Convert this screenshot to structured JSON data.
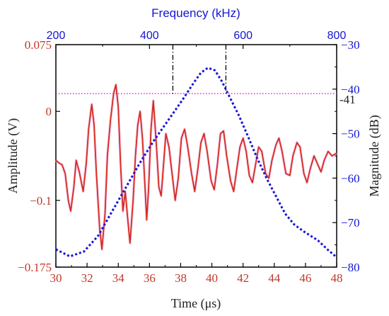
{
  "chart_data": {
    "type": "line",
    "x_bottom": {
      "label": "Time (μs)",
      "range": [
        30,
        48
      ],
      "ticks": [
        30,
        32,
        34,
        36,
        38,
        40,
        42,
        44,
        46,
        48
      ],
      "tick_labels": [
        "30",
        "32",
        "34",
        "36",
        "38",
        "40",
        "42",
        "44",
        "46",
        "48"
      ]
    },
    "x_top": {
      "label": "Frequency (kHz)",
      "range": [
        200,
        800
      ],
      "ticks": [
        200,
        400,
        600,
        800
      ],
      "tick_labels": [
        "200",
        "400",
        "600",
        "800"
      ]
    },
    "y_left": {
      "label": "Amplitude (V)",
      "range": [
        -0.175,
        0.075
      ],
      "ticks": [
        0.075,
        0,
        -0.1,
        -0.175
      ],
      "tick_labels": [
        "0.075",
        "0",
        "−0.1",
        "−0.175"
      ]
    },
    "y_right": {
      "label": "Magnitude (dB)",
      "range": [
        -80,
        -30
      ],
      "ticks": [
        -30,
        -40,
        -50,
        -60,
        -70,
        -80
      ],
      "tick_labels": [
        "−30",
        "−40",
        "−50",
        "−60",
        "−70",
        "−80"
      ]
    },
    "series": [
      {
        "axes": "bottom-left",
        "style": "solid",
        "color": "#d42a1f",
        "points": [
          [
            30.0,
            -0.055
          ],
          [
            30.2,
            -0.058
          ],
          [
            30.4,
            -0.06
          ],
          [
            30.6,
            -0.07
          ],
          [
            30.8,
            -0.1
          ],
          [
            30.95,
            -0.112
          ],
          [
            31.15,
            -0.085
          ],
          [
            31.3,
            -0.055
          ],
          [
            31.5,
            -0.068
          ],
          [
            31.75,
            -0.09
          ],
          [
            31.95,
            -0.058
          ],
          [
            32.1,
            -0.02
          ],
          [
            32.3,
            0.008
          ],
          [
            32.45,
            -0.015
          ],
          [
            32.6,
            -0.07
          ],
          [
            32.8,
            -0.13
          ],
          [
            32.95,
            -0.155
          ],
          [
            33.15,
            -0.115
          ],
          [
            33.3,
            -0.05
          ],
          [
            33.5,
            -0.01
          ],
          [
            33.7,
            0.02
          ],
          [
            33.85,
            0.03
          ],
          [
            34.0,
            0.005
          ],
          [
            34.15,
            -0.06
          ],
          [
            34.3,
            -0.112
          ],
          [
            34.45,
            -0.09
          ],
          [
            34.6,
            -0.12
          ],
          [
            34.75,
            -0.148
          ],
          [
            34.95,
            -0.1
          ],
          [
            35.1,
            -0.05
          ],
          [
            35.25,
            -0.015
          ],
          [
            35.4,
            0.0
          ],
          [
            35.55,
            -0.03
          ],
          [
            35.7,
            -0.08
          ],
          [
            35.82,
            -0.122
          ],
          [
            35.95,
            -0.085
          ],
          [
            36.1,
            -0.02
          ],
          [
            36.25,
            0.012
          ],
          [
            36.45,
            -0.04
          ],
          [
            36.6,
            -0.085
          ],
          [
            36.75,
            -0.095
          ],
          [
            36.9,
            -0.06
          ],
          [
            37.05,
            -0.025
          ],
          [
            37.25,
            -0.04
          ],
          [
            37.45,
            -0.07
          ],
          [
            37.65,
            -0.1
          ],
          [
            37.85,
            -0.075
          ],
          [
            38.05,
            -0.03
          ],
          [
            38.25,
            -0.02
          ],
          [
            38.45,
            -0.04
          ],
          [
            38.7,
            -0.07
          ],
          [
            38.9,
            -0.09
          ],
          [
            39.1,
            -0.065
          ],
          [
            39.3,
            -0.035
          ],
          [
            39.5,
            -0.025
          ],
          [
            39.7,
            -0.045
          ],
          [
            39.95,
            -0.078
          ],
          [
            40.15,
            -0.088
          ],
          [
            40.35,
            -0.06
          ],
          [
            40.55,
            -0.025
          ],
          [
            40.75,
            -0.022
          ],
          [
            40.95,
            -0.05
          ],
          [
            41.2,
            -0.078
          ],
          [
            41.4,
            -0.09
          ],
          [
            41.6,
            -0.065
          ],
          [
            41.8,
            -0.04
          ],
          [
            42.0,
            -0.03
          ],
          [
            42.2,
            -0.045
          ],
          [
            42.4,
            -0.072
          ],
          [
            42.6,
            -0.08
          ],
          [
            42.8,
            -0.06
          ],
          [
            43.0,
            -0.04
          ],
          [
            43.2,
            -0.045
          ],
          [
            43.45,
            -0.07
          ],
          [
            43.65,
            -0.075
          ],
          [
            43.85,
            -0.055
          ],
          [
            44.1,
            -0.038
          ],
          [
            44.3,
            -0.03
          ],
          [
            44.5,
            -0.045
          ],
          [
            44.75,
            -0.07
          ],
          [
            45.0,
            -0.072
          ],
          [
            45.2,
            -0.05
          ],
          [
            45.45,
            -0.035
          ],
          [
            45.65,
            -0.04
          ],
          [
            45.9,
            -0.07
          ],
          [
            46.1,
            -0.08
          ],
          [
            46.3,
            -0.065
          ],
          [
            46.55,
            -0.05
          ],
          [
            46.8,
            -0.06
          ],
          [
            47.0,
            -0.068
          ],
          [
            47.2,
            -0.055
          ],
          [
            47.45,
            -0.045
          ],
          [
            47.7,
            -0.05
          ],
          [
            48.0,
            -0.047
          ]
        ]
      },
      {
        "axes": "top-right",
        "style": "dotted",
        "color": "#1515d6",
        "points": [
          [
            200,
            -76
          ],
          [
            230,
            -77.6
          ],
          [
            260,
            -76.5
          ],
          [
            290,
            -73
          ],
          [
            320,
            -67.5
          ],
          [
            350,
            -62
          ],
          [
            380,
            -56.5
          ],
          [
            410,
            -51.5
          ],
          [
            440,
            -47
          ],
          [
            470,
            -42.5
          ],
          [
            495,
            -38.5
          ],
          [
            510,
            -36.3
          ],
          [
            525,
            -35.2
          ],
          [
            540,
            -35.8
          ],
          [
            555,
            -38.3
          ],
          [
            570,
            -41.5
          ],
          [
            590,
            -45.7
          ],
          [
            610,
            -50.5
          ],
          [
            630,
            -55.5
          ],
          [
            650,
            -60
          ],
          [
            670,
            -64
          ],
          [
            690,
            -68
          ],
          [
            710,
            -70.5
          ],
          [
            730,
            -72
          ],
          [
            760,
            -74
          ],
          [
            780,
            -76
          ],
          [
            800,
            -77.8
          ]
        ]
      }
    ],
    "annotations": {
      "threshold_db": -41,
      "threshold_label": "-41",
      "threshold_color": "#d21fd2",
      "marker_times": [
        37.5,
        40.9
      ]
    },
    "grid": false
  }
}
